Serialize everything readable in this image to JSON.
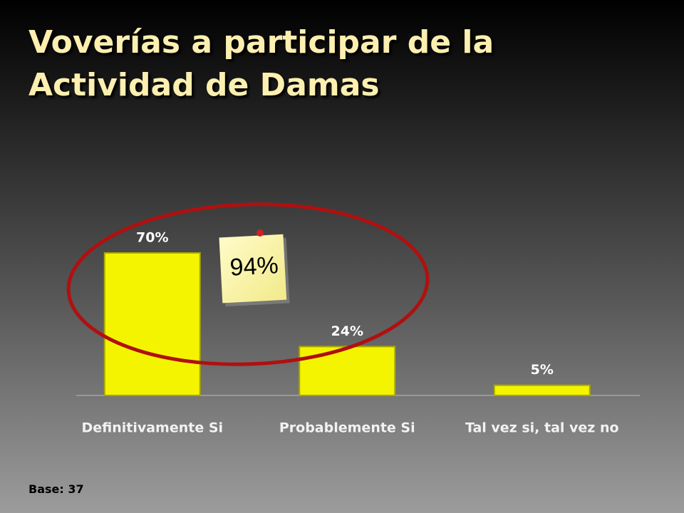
{
  "chart_data": {
    "type": "bar",
    "title": "Voverías a participar de la Actividad de Damas",
    "categories": [
      "Definitivamente Si",
      "Probablemente Si",
      "Tal vez si, tal vez no"
    ],
    "values": [
      70,
      24,
      5
    ],
    "value_labels": [
      "70%",
      "24%",
      "5%"
    ],
    "color": "#f4f400",
    "annotation": "94%",
    "footnote": "Base: 37"
  }
}
